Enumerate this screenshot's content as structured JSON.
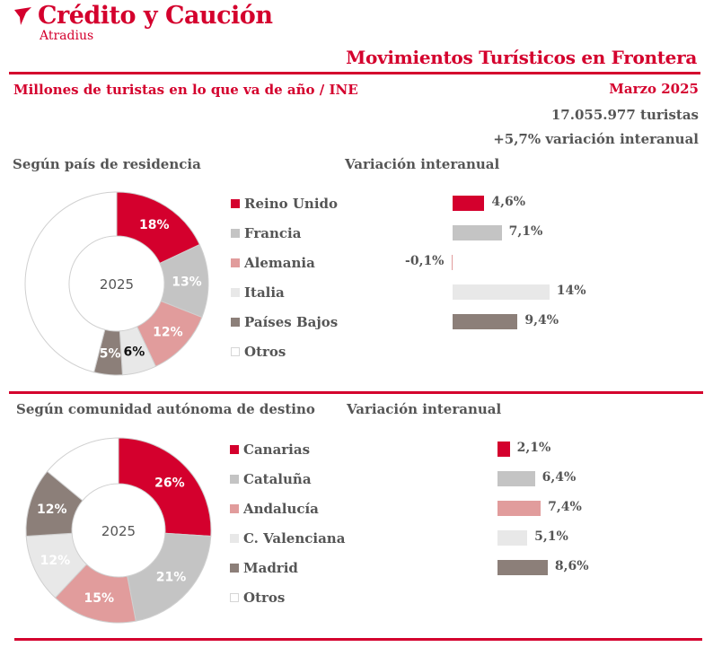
{
  "header": {
    "brand_name": "Crédito y Caución",
    "brand_sub": "Atradius",
    "report_title": "Movimientos Turísticos en Frontera",
    "subtitle": "Millones de turistas en lo que va de año / INE",
    "period": "Marzo 2025",
    "total": "17.055.977 turistas",
    "variation": "+5,7% variación  interanual"
  },
  "colors": {
    "accent": "#d4002d",
    "grey": "#c4c4c4",
    "pink": "#e19c9c",
    "light": "#e8e8e8",
    "taupe": "#8c7f79",
    "white": "#ffffff"
  },
  "chart_data": [
    {
      "type": "pie",
      "title": "Según país de residencia",
      "center_label": "2025",
      "categories": [
        "Reino Unido",
        "Francia",
        "Alemania",
        "Italia",
        "Países Bajos",
        "Otros"
      ],
      "values": [
        18,
        13,
        12,
        6,
        5,
        46
      ],
      "labels": [
        "18%",
        "13%",
        "12%",
        "6%",
        "5%",
        ""
      ]
    },
    {
      "type": "bar",
      "title": "Variación interanual",
      "categories": [
        "Reino Unido",
        "Francia",
        "Alemania",
        "Italia",
        "Países Bajos"
      ],
      "values": [
        4.6,
        7.1,
        -0.1,
        14,
        9.4
      ],
      "labels": [
        "4,6%",
        "7,1%",
        "-0,1%",
        "14%",
        "9,4%"
      ]
    },
    {
      "type": "pie",
      "title": "Según comunidad autónoma de destino",
      "center_label": "2025",
      "categories": [
        "Canarias",
        "Cataluña",
        "Andalucía",
        "C. Valenciana",
        "Madrid",
        "Otros"
      ],
      "values": [
        26,
        21,
        15,
        12,
        12,
        14
      ],
      "labels": [
        "26%",
        "21%",
        "15%",
        "12%",
        "12%",
        ""
      ]
    },
    {
      "type": "bar",
      "title": "Variación interanual",
      "categories": [
        "Canarias",
        "Cataluña",
        "Andalucía",
        "C. Valenciana",
        "Madrid"
      ],
      "values": [
        2.1,
        6.4,
        7.4,
        5.1,
        8.6
      ],
      "labels": [
        "2,1%",
        "6,4%",
        "7,4%",
        "5,1%",
        "8,6%"
      ]
    }
  ]
}
